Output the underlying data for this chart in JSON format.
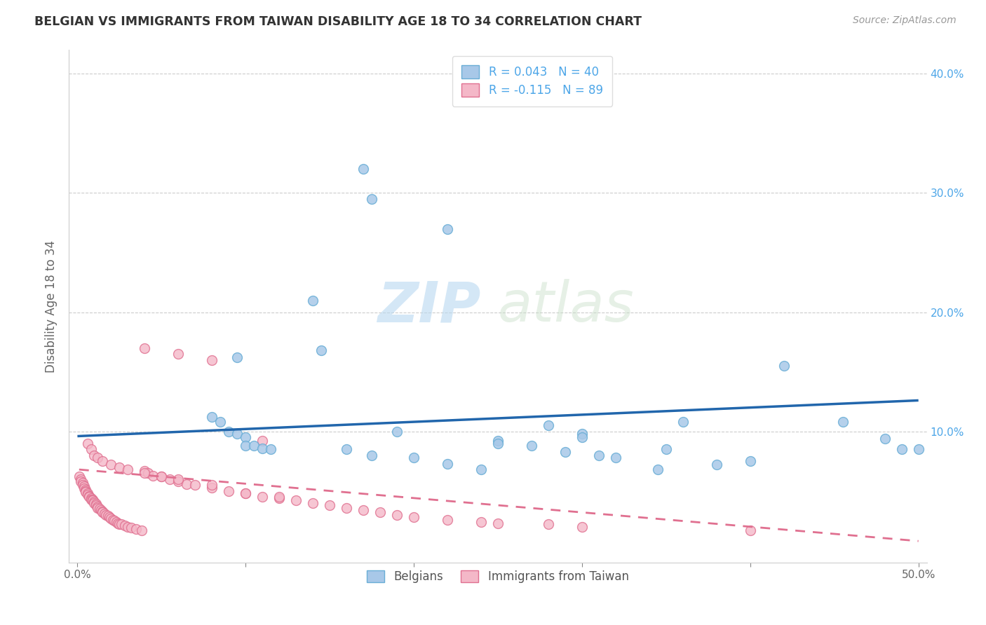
{
  "title": "BELGIAN VS IMMIGRANTS FROM TAIWAN DISABILITY AGE 18 TO 34 CORRELATION CHART",
  "source": "Source: ZipAtlas.com",
  "ylabel": "Disability Age 18 to 34",
  "x_ticks": [
    0.0,
    0.1,
    0.2,
    0.3,
    0.4,
    0.5
  ],
  "x_tick_labels": [
    "0.0%",
    "",
    "",
    "",
    "",
    "50.0%"
  ],
  "y_ticks": [
    0.0,
    0.1,
    0.2,
    0.3,
    0.4
  ],
  "y_tick_labels_right": [
    "",
    "10.0%",
    "20.0%",
    "30.0%",
    "40.0%"
  ],
  "xlim": [
    -0.005,
    0.505
  ],
  "ylim": [
    -0.01,
    0.42
  ],
  "belgian_color": "#a8c8e8",
  "belgian_edge_color": "#6aaed6",
  "taiwan_color": "#f4b8c8",
  "taiwan_edge_color": "#e07090",
  "blue_line_color": "#2166ac",
  "pink_line_color": "#e07090",
  "legend_blue_label": "R = 0.043   N = 40",
  "legend_pink_label": "R = -0.115   N = 89",
  "bottom_legend_blue": "Belgians",
  "bottom_legend_pink": "Immigrants from Taiwan",
  "belgian_R": 0.043,
  "belgian_N": 40,
  "taiwan_R": -0.115,
  "taiwan_N": 89,
  "belgian_x": [
    0.17,
    0.175,
    0.22,
    0.14,
    0.145,
    0.095,
    0.08,
    0.085,
    0.09,
    0.095,
    0.1,
    0.1,
    0.105,
    0.11,
    0.115,
    0.16,
    0.175,
    0.2,
    0.22,
    0.24,
    0.25,
    0.28,
    0.3,
    0.32,
    0.345,
    0.36,
    0.38,
    0.42,
    0.455,
    0.49,
    0.19,
    0.25,
    0.3,
    0.35,
    0.4,
    0.27,
    0.29,
    0.31,
    0.5,
    0.48
  ],
  "belgian_y": [
    0.32,
    0.295,
    0.27,
    0.21,
    0.168,
    0.162,
    0.112,
    0.108,
    0.1,
    0.098,
    0.095,
    0.088,
    0.088,
    0.086,
    0.085,
    0.085,
    0.08,
    0.078,
    0.073,
    0.068,
    0.092,
    0.105,
    0.098,
    0.078,
    0.068,
    0.108,
    0.072,
    0.155,
    0.108,
    0.085,
    0.1,
    0.09,
    0.095,
    0.085,
    0.075,
    0.088,
    0.083,
    0.08,
    0.085,
    0.094
  ],
  "taiwan_x": [
    0.001,
    0.002,
    0.002,
    0.003,
    0.003,
    0.004,
    0.004,
    0.005,
    0.005,
    0.005,
    0.006,
    0.006,
    0.007,
    0.007,
    0.008,
    0.008,
    0.009,
    0.009,
    0.01,
    0.01,
    0.011,
    0.011,
    0.012,
    0.012,
    0.013,
    0.014,
    0.015,
    0.015,
    0.016,
    0.017,
    0.018,
    0.019,
    0.02,
    0.021,
    0.022,
    0.023,
    0.024,
    0.025,
    0.026,
    0.028,
    0.03,
    0.032,
    0.035,
    0.038,
    0.04,
    0.042,
    0.045,
    0.05,
    0.055,
    0.06,
    0.065,
    0.07,
    0.08,
    0.09,
    0.1,
    0.11,
    0.12,
    0.13,
    0.14,
    0.15,
    0.16,
    0.17,
    0.18,
    0.19,
    0.2,
    0.22,
    0.24,
    0.25,
    0.28,
    0.3,
    0.006,
    0.008,
    0.01,
    0.012,
    0.015,
    0.02,
    0.025,
    0.03,
    0.04,
    0.05,
    0.06,
    0.08,
    0.1,
    0.12,
    0.04,
    0.06,
    0.08,
    0.11,
    0.4
  ],
  "taiwan_y": [
    0.062,
    0.06,
    0.058,
    0.057,
    0.055,
    0.054,
    0.052,
    0.051,
    0.05,
    0.049,
    0.048,
    0.047,
    0.046,
    0.045,
    0.044,
    0.043,
    0.043,
    0.042,
    0.041,
    0.04,
    0.039,
    0.038,
    0.037,
    0.036,
    0.035,
    0.034,
    0.033,
    0.032,
    0.031,
    0.03,
    0.029,
    0.028,
    0.027,
    0.026,
    0.025,
    0.024,
    0.023,
    0.022,
    0.022,
    0.021,
    0.02,
    0.019,
    0.018,
    0.017,
    0.067,
    0.065,
    0.063,
    0.062,
    0.06,
    0.058,
    0.056,
    0.055,
    0.053,
    0.05,
    0.048,
    0.045,
    0.044,
    0.042,
    0.04,
    0.038,
    0.036,
    0.034,
    0.032,
    0.03,
    0.028,
    0.026,
    0.024,
    0.023,
    0.022,
    0.02,
    0.09,
    0.085,
    0.08,
    0.078,
    0.075,
    0.072,
    0.07,
    0.068,
    0.065,
    0.062,
    0.06,
    0.055,
    0.048,
    0.045,
    0.17,
    0.165,
    0.16,
    0.092,
    0.017
  ],
  "taiwan_line_start_x": 0.001,
  "taiwan_line_start_y": 0.068,
  "taiwan_line_end_x": 0.5,
  "taiwan_line_end_y": 0.008,
  "belgian_line_start_x": 0.0,
  "belgian_line_start_y": 0.096,
  "belgian_line_end_x": 0.5,
  "belgian_line_end_y": 0.126,
  "watermark_zip": "ZIP",
  "watermark_atlas": "atlas",
  "background_color": "#ffffff",
  "grid_color": "#cccccc"
}
